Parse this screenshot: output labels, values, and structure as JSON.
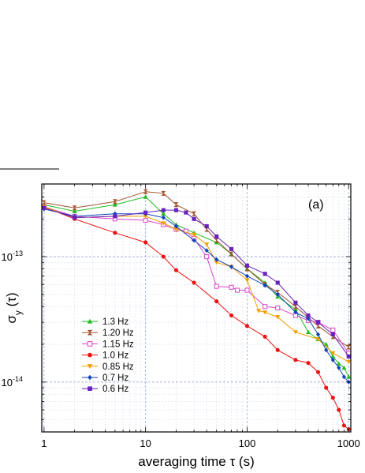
{
  "chart_data": {
    "type": "line",
    "panel_label": "(a)",
    "xlabel": "averaging time τ (s)",
    "ylabel_main": "σ",
    "ylabel_sub": "y",
    "ylabel_arg": " (τ)",
    "x_scale": "log",
    "y_scale": "log",
    "xlim": [
      0.95,
      1050
    ],
    "ylim": [
      4e-15,
      3.8e-13
    ],
    "x_ticks": [
      1,
      10,
      100,
      1000
    ],
    "x_tick_labels": [
      "1",
      "10",
      "100",
      "1000"
    ],
    "y_ticks": [
      1e-14,
      1e-13
    ],
    "y_tick_labels": [
      {
        "base": "10",
        "exp": "-14"
      },
      {
        "base": "10",
        "exp": "-13"
      }
    ],
    "grid": true,
    "legend_position": "lower-left",
    "series": [
      {
        "name": "1.3 Hz",
        "color": "#22bb22",
        "marker": "triangle-up",
        "x": [
          1,
          2,
          5,
          10,
          15,
          20,
          30,
          50,
          70,
          100,
          150,
          200,
          300,
          400,
          500,
          600,
          700,
          800,
          900,
          1000
        ],
        "y": [
          2.6e-13,
          2.3e-13,
          2.6e-13,
          3e-13,
          2.2e-13,
          1.8e-13,
          1.55e-13,
          1.3e-13,
          1.05e-13,
          8e-14,
          6.2e-14,
          4.8e-14,
          3.8e-14,
          2.5e-14,
          2.2e-14,
          2e-14,
          1.6e-14,
          1.4e-14,
          1.3e-14,
          1.1e-14
        ]
      },
      {
        "name": "1.20 Hz",
        "color": "#a0522d",
        "marker": "hourglass",
        "x": [
          1,
          2,
          5,
          10,
          15,
          20,
          30,
          40,
          50,
          70,
          100,
          150,
          200,
          300,
          500,
          700,
          1000
        ],
        "y": [
          2.7e-13,
          2.45e-13,
          2.75e-13,
          3.3e-13,
          3.2e-13,
          2.6e-13,
          2.2e-13,
          1.65e-13,
          1.35e-13,
          1.05e-13,
          8e-14,
          6e-14,
          5.2e-14,
          4e-14,
          2.8e-14,
          2.3e-14,
          1.9e-14
        ]
      },
      {
        "name": "1.15 Hz",
        "color": "#dd44cc",
        "marker": "square-open",
        "x": [
          1,
          2,
          5,
          10,
          15,
          20,
          25,
          30,
          40,
          50,
          70,
          80,
          100,
          150,
          200,
          300,
          400,
          500,
          700,
          1000
        ],
        "y": [
          2.5e-13,
          2.1e-13,
          2e-13,
          1.95e-13,
          1.8e-13,
          1.65e-13,
          1.6e-13,
          1.4e-13,
          1e-13,
          5.8e-14,
          5.7e-14,
          5.4e-14,
          5.4e-14,
          4e-14,
          3.9e-14,
          3.4e-14,
          3.1e-14,
          3e-14,
          2.6e-14,
          1.7e-14
        ]
      },
      {
        "name": "1.0 Hz",
        "color": "#ee1111",
        "marker": "circle",
        "x": [
          1,
          2,
          5,
          10,
          15,
          20,
          30,
          50,
          70,
          100,
          150,
          200,
          300,
          400,
          500,
          600,
          700,
          800,
          900,
          1000
        ],
        "y": [
          2.5e-13,
          2e-13,
          1.55e-13,
          1.3e-13,
          1e-13,
          7.8e-14,
          6.2e-14,
          4.4e-14,
          3.4e-14,
          2.8e-14,
          2.3e-14,
          1.8e-14,
          1.5e-14,
          1.42e-14,
          1.2e-14,
          9e-15,
          7.5e-15,
          6e-15,
          4.5e-15,
          4.2e-15
        ]
      },
      {
        "name": "0.85 Hz",
        "color": "#f0a000",
        "marker": "triangle-down",
        "x": [
          1,
          2,
          5,
          10,
          15,
          20,
          30,
          40,
          50,
          70,
          100,
          130,
          150,
          200,
          300,
          500,
          700,
          1000
        ],
        "y": [
          2.5e-13,
          2.05e-13,
          2.1e-13,
          2.1e-13,
          1.85e-13,
          1.65e-13,
          1.5e-13,
          1.25e-13,
          9e-14,
          8.3e-14,
          6.5e-14,
          3.7e-14,
          3.6e-14,
          3.3e-14,
          2.5e-14,
          2.2e-14,
          1.7e-14,
          1.45e-14
        ]
      },
      {
        "name": "0.7 Hz",
        "color": "#1144bb",
        "marker": "diamond",
        "x": [
          1,
          2,
          5,
          10,
          15,
          20,
          30,
          40,
          50,
          70,
          100,
          150,
          200,
          300,
          400,
          500,
          600,
          700,
          800,
          900,
          1000
        ],
        "y": [
          2.4e-13,
          2.1e-13,
          2.2e-13,
          2.2e-13,
          2.05e-13,
          1.75e-13,
          1.35e-13,
          1.12e-13,
          9.5e-14,
          8.3e-14,
          7e-14,
          5.9e-14,
          5e-14,
          3.6e-14,
          3.2e-14,
          2.4e-14,
          1.8e-14,
          1.5e-14,
          1.3e-14,
          1.1e-14,
          1e-14
        ]
      },
      {
        "name": "0.6 Hz",
        "color": "#6622bb",
        "marker": "square",
        "x": [
          1,
          2,
          5,
          10,
          15,
          20,
          25,
          30,
          40,
          50,
          70,
          100,
          150,
          200,
          300,
          400,
          500,
          700,
          1000
        ],
        "y": [
          2.45e-13,
          2.05e-13,
          2.1e-13,
          2.25e-13,
          2.35e-13,
          2.35e-13,
          2.25e-13,
          2e-13,
          1.75e-13,
          1.45e-13,
          1.15e-13,
          8.5e-14,
          7.3e-14,
          6.2e-14,
          4.3e-14,
          3.4e-14,
          3e-14,
          2.4e-14,
          1.6e-14
        ]
      }
    ]
  }
}
